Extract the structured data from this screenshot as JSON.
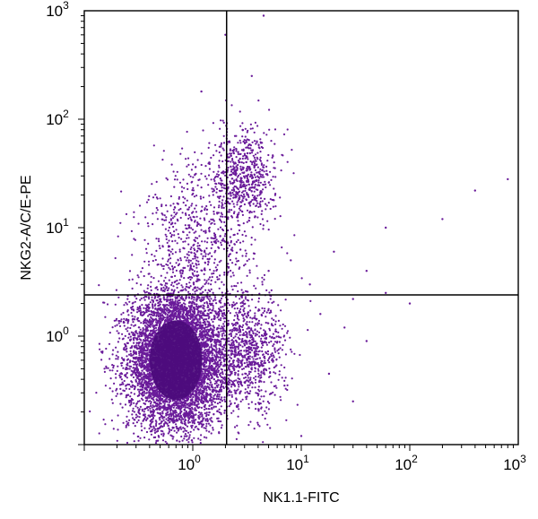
{
  "chart_data": {
    "type": "scatter",
    "title": "",
    "xlabel": "NK1.1-FITC",
    "ylabel": "NKG2-A/C/E-PE",
    "x_scale": "log",
    "y_scale": "log",
    "xlim": [
      0.1,
      1000
    ],
    "ylim": [
      0.1,
      1000
    ],
    "x_ticks": [
      {
        "value": 1,
        "base": "10",
        "exp": "0"
      },
      {
        "value": 10,
        "base": "10",
        "exp": "1"
      },
      {
        "value": 100,
        "base": "10",
        "exp": "2"
      },
      {
        "value": 1000,
        "base": "10",
        "exp": "3"
      }
    ],
    "y_ticks": [
      {
        "value": 1,
        "base": "10",
        "exp": "0"
      },
      {
        "value": 10,
        "base": "10",
        "exp": "1"
      },
      {
        "value": 100,
        "base": "10",
        "exp": "2"
      },
      {
        "value": 1000,
        "base": "10",
        "exp": "3"
      }
    ],
    "quadrant_gate": {
      "x": 2.05,
      "y": 2.4
    },
    "grid": false,
    "legend": "none",
    "point_color": "#6a1b9a",
    "dense_core_color": "#4a0a7a",
    "populations": [
      {
        "center": [
          0.7,
          0.6
        ],
        "spread_decades": [
          0.22,
          0.32
        ],
        "events": 6500
      },
      {
        "center": [
          3.0,
          30.0
        ],
        "spread_decades": [
          0.14,
          0.22
        ],
        "events": 600
      },
      {
        "center": [
          1.2,
          8.0
        ],
        "spread_decades": [
          0.28,
          0.38
        ],
        "events": 700
      },
      {
        "center": [
          3.2,
          0.7
        ],
        "spread_decades": [
          0.18,
          0.28
        ],
        "events": 900
      }
    ],
    "sparse_events": [
      [
        4.5,
        900
      ],
      [
        2.0,
        600
      ],
      [
        1.2,
        180
      ],
      [
        3.5,
        250
      ],
      [
        200,
        12
      ],
      [
        400,
        22
      ],
      [
        800,
        28
      ],
      [
        60,
        10
      ],
      [
        20,
        6
      ],
      [
        40,
        4
      ],
      [
        8,
        5
      ],
      [
        5,
        4
      ],
      [
        12,
        3
      ],
      [
        30,
        2.2
      ],
      [
        60,
        2.5
      ],
      [
        100,
        2.0
      ],
      [
        15,
        1.6
      ],
      [
        25,
        1.2
      ],
      [
        40,
        0.9
      ],
      [
        18,
        0.45
      ],
      [
        10,
        0.12
      ],
      [
        7,
        0.35
      ],
      [
        30,
        0.25
      ]
    ]
  }
}
